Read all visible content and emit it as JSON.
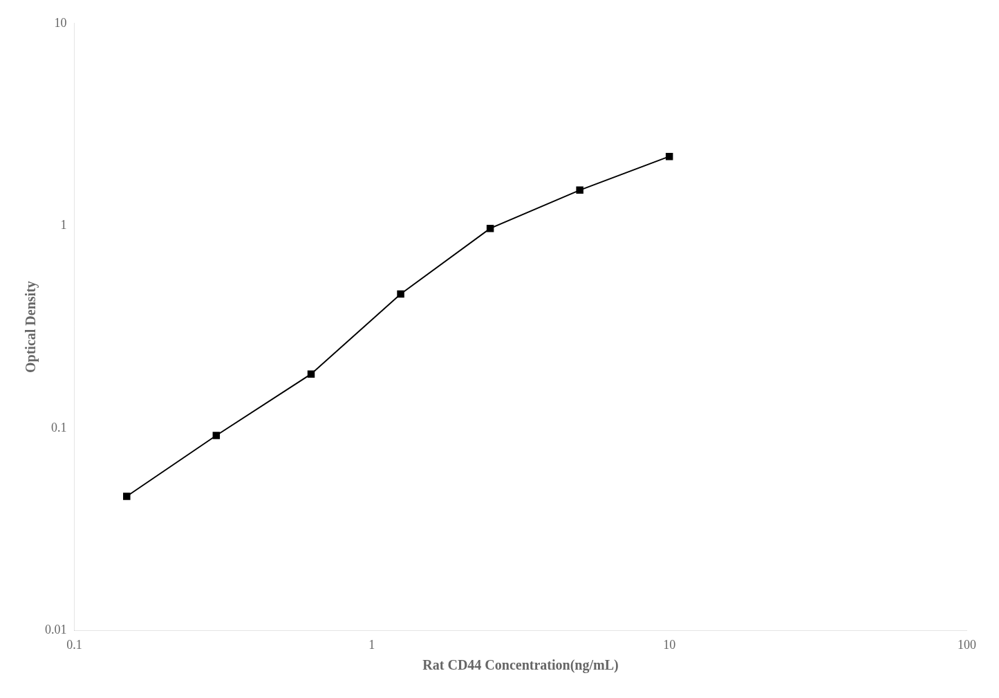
{
  "chart_data": {
    "type": "line",
    "x": [
      0.15,
      0.3,
      0.625,
      1.25,
      2.5,
      5.0,
      10.0
    ],
    "values": [
      0.046,
      0.092,
      0.185,
      0.46,
      0.97,
      1.5,
      2.2
    ],
    "xlabel": "Rat CD44 Concentration(ng/mL)",
    "ylabel": "Optical Density",
    "xlim": [
      0.1,
      100
    ],
    "ylim": [
      0.01,
      10
    ],
    "xticks": [
      0.1,
      1,
      10,
      100
    ],
    "yticks": [
      0.01,
      0.1,
      1,
      10
    ],
    "log": true,
    "grid": false,
    "color": "#000000",
    "marker": "square"
  }
}
